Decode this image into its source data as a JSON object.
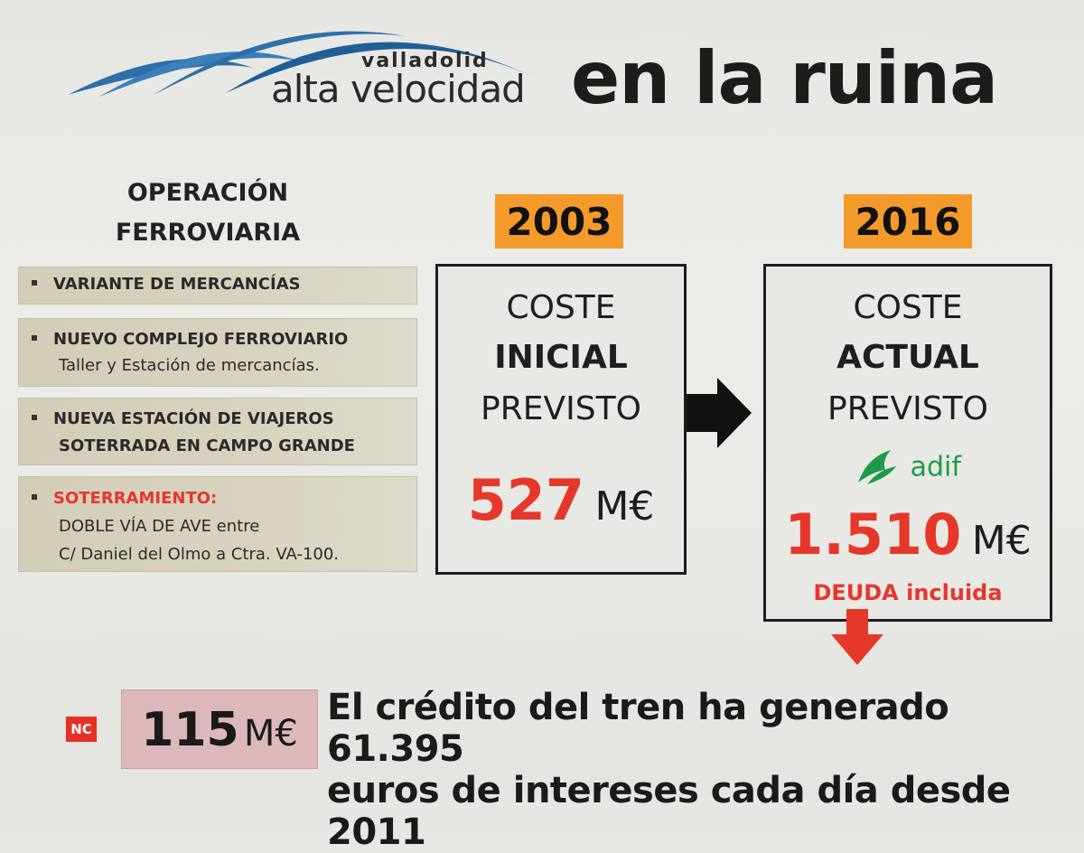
{
  "logo": {
    "city": "valladolid",
    "name": "alta velocidad"
  },
  "headline": "en la ruina",
  "operation": {
    "title_line1": "OPERACIÓN",
    "title_line2": "FERROVIARIA",
    "items": [
      {
        "title": "VARIANTE DE MERCANCÍAS"
      },
      {
        "title": "NUEVO COMPLEJO FERROVIARIO",
        "sub": "Taller y Estación de mercancías."
      },
      {
        "title_line1": "NUEVA ESTACIÓN DE VIAJEROS",
        "title_line2": "SOTERRADA EN CAMPO GRANDE"
      },
      {
        "title": "SOTERRAMIENTO:",
        "sub_line1": "DOBLE VÍA DE AVE entre",
        "sub_line2": "C/ Daniel del Olmo a Ctra. VA-100."
      }
    ]
  },
  "cost_initial": {
    "year": "2003",
    "line1": "COSTE",
    "line2": "INICIAL",
    "line3": "PREVISTO",
    "amount": "527",
    "unit": "M€"
  },
  "cost_actual": {
    "year": "2016",
    "line1": "COSTE",
    "line2": "ACTUAL",
    "line3": "PREVISTO",
    "brand": "adif",
    "amount": "1.510",
    "unit": "M€",
    "note": "DEUDA incluida"
  },
  "news": {
    "badge": "NC",
    "amount": "115",
    "unit": "M€",
    "line1": "El crédito del tren ha generado 61.395",
    "line2": "euros de intereses cada día desde 2011"
  },
  "colors": {
    "accent_orange": "#f39a2b",
    "alert_red": "#e6372b",
    "logo_blue": "#2e6fa8",
    "adif_green": "#1f9a4a"
  }
}
